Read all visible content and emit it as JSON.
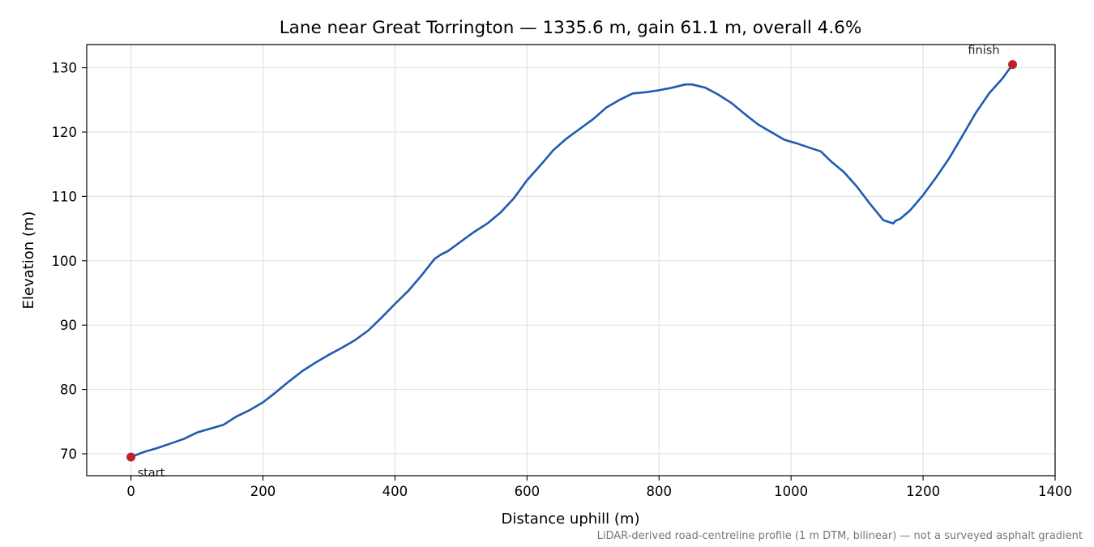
{
  "chart_data": {
    "type": "line",
    "title": "Lane near Great Torrington — 1335.6 m, gain 61.1 m, overall 4.6%",
    "xlabel": "Distance uphill (m)",
    "ylabel": "Elevation (m)",
    "xlim": [
      -67,
      1400
    ],
    "ylim": [
      66.6,
      133.6
    ],
    "xticks": [
      0,
      200,
      400,
      600,
      800,
      1000,
      1200,
      1400
    ],
    "yticks": [
      70,
      80,
      90,
      100,
      110,
      120,
      130
    ],
    "xtick_labels": [
      "0",
      "200",
      "400",
      "600",
      "800",
      "1000",
      "1200",
      "1400"
    ],
    "ytick_labels": [
      "70",
      "80",
      "90",
      "100",
      "110",
      "120",
      "130"
    ],
    "grid": true,
    "line_color": "#1f5bb0",
    "marker_color": "#c0202a",
    "series": [
      {
        "x": [
          0,
          20,
          40,
          60,
          80,
          100,
          120,
          140,
          160,
          180,
          200,
          220,
          240,
          260,
          280,
          300,
          320,
          340,
          360,
          380,
          400,
          420,
          440,
          460,
          470,
          480,
          500,
          520,
          540,
          560,
          580,
          600,
          620,
          640,
          660,
          680,
          700,
          720,
          740,
          760,
          780,
          800,
          820,
          840,
          850,
          870,
          890,
          910,
          930,
          950,
          970,
          990,
          1010,
          1030,
          1045,
          1060,
          1080,
          1100,
          1120,
          1140,
          1155,
          1158,
          1165,
          1180,
          1200,
          1220,
          1240,
          1260,
          1280,
          1300,
          1320,
          1335.6
        ],
        "y": [
          69.5,
          70.3,
          70.9,
          71.6,
          72.3,
          73.3,
          73.9,
          74.5,
          75.8,
          76.8,
          78.0,
          79.6,
          81.3,
          82.9,
          84.2,
          85.4,
          86.5,
          87.7,
          89.2,
          91.2,
          93.3,
          95.3,
          97.7,
          100.3,
          101.0,
          101.5,
          103.0,
          104.5,
          105.8,
          107.5,
          109.7,
          112.5,
          114.8,
          117.2,
          119.0,
          120.5,
          122.0,
          123.8,
          125.0,
          126.0,
          126.2,
          126.5,
          126.9,
          127.4,
          127.4,
          126.9,
          125.8,
          124.5,
          122.8,
          121.2,
          120.0,
          118.8,
          118.2,
          117.5,
          117.0,
          115.5,
          113.8,
          111.5,
          108.8,
          106.3,
          105.8,
          106.2,
          106.5,
          107.8,
          110.2,
          113.0,
          116.0,
          119.5,
          123.0,
          126.0,
          128.3,
          130.5
        ]
      }
    ],
    "annotations": [
      {
        "text": "start",
        "x": 0,
        "y": 69.5
      },
      {
        "text": "finish",
        "x": 1335.6,
        "y": 130.5
      }
    ],
    "footnote": "LiDAR-derived road-centreline profile (1 m DTM, bilinear) — not a surveyed asphalt gradient"
  }
}
